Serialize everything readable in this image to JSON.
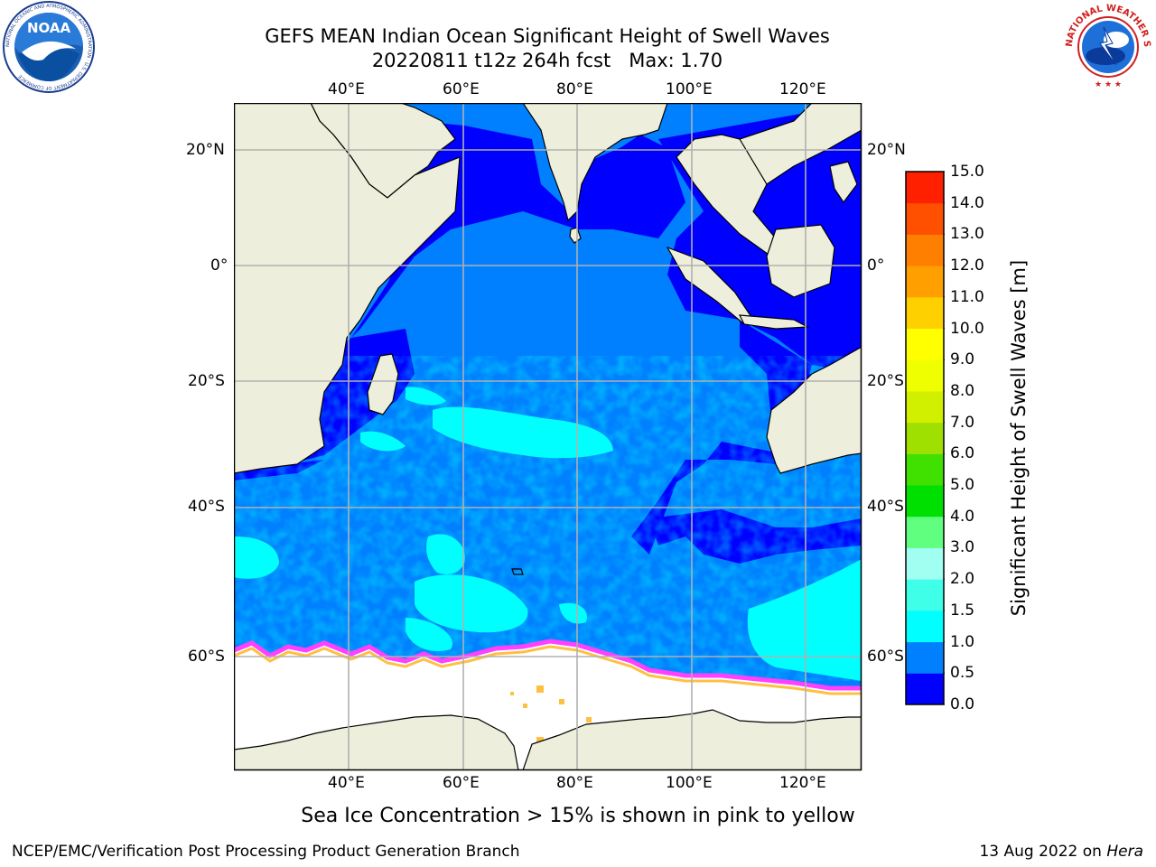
{
  "title": {
    "line1": "GEFS MEAN Indian Ocean Significant Height of Swell Waves",
    "line2": "20220811 t12z 264h fcst   Max: 1.70"
  },
  "logos": {
    "left": {
      "name": "noaa-logo",
      "text": "NOAA",
      "ring_text": "NATIONAL OCEANIC AND ATMOSPHERIC ADMINISTRATION · U.S. DEPARTMENT OF COMMERCE"
    },
    "right": {
      "name": "nws-logo",
      "ring_text": "NATIONAL WEATHER SERVICE"
    }
  },
  "map": {
    "lon_ticks": [
      "40°E",
      "60°E",
      "80°E",
      "100°E",
      "120°E"
    ],
    "lat_ticks": [
      "20°N",
      "0°",
      "20°S",
      "40°S",
      "60°S"
    ],
    "lon_range": [
      20,
      130
    ],
    "lat_range": [
      -73,
      28
    ],
    "gridlines": true
  },
  "colorbar": {
    "title": "Significant Height of Swell Waves [m]",
    "levels": [
      "0.0",
      "0.5",
      "1.0",
      "1.5",
      "2.0",
      "3.0",
      "4.0",
      "5.0",
      "6.0",
      "7.0",
      "8.0",
      "9.0",
      "10.0",
      "11.0",
      "12.0",
      "13.0",
      "14.0",
      "15.0"
    ],
    "colors": [
      "#0000ff",
      "#0080ff",
      "#00ffff",
      "#40ffe8",
      "#a0fff0",
      "#60ff80",
      "#00e000",
      "#40e000",
      "#a0e000",
      "#d0f000",
      "#f0ff00",
      "#ffff00",
      "#ffd000",
      "#ffa000",
      "#ff8000",
      "#ff5000",
      "#ff2000"
    ]
  },
  "colors": {
    "land": "#eeeedd",
    "ocean_low": "#0000ff",
    "ocean_mid": "#0080ff",
    "ocean_high": "#00ffff",
    "sea_ice": "#ffffff",
    "ice_edge_pink": "#ff40ff",
    "ice_edge_yellow": "#ffc040"
  },
  "caption": "Sea Ice Concentration > 15% is shown in pink to yellow",
  "footer": {
    "left": "NCEP/EMC/Verification Post Processing Product Generation Branch",
    "right_prefix": "13 Aug 2022 on ",
    "right_host": "Hera"
  }
}
